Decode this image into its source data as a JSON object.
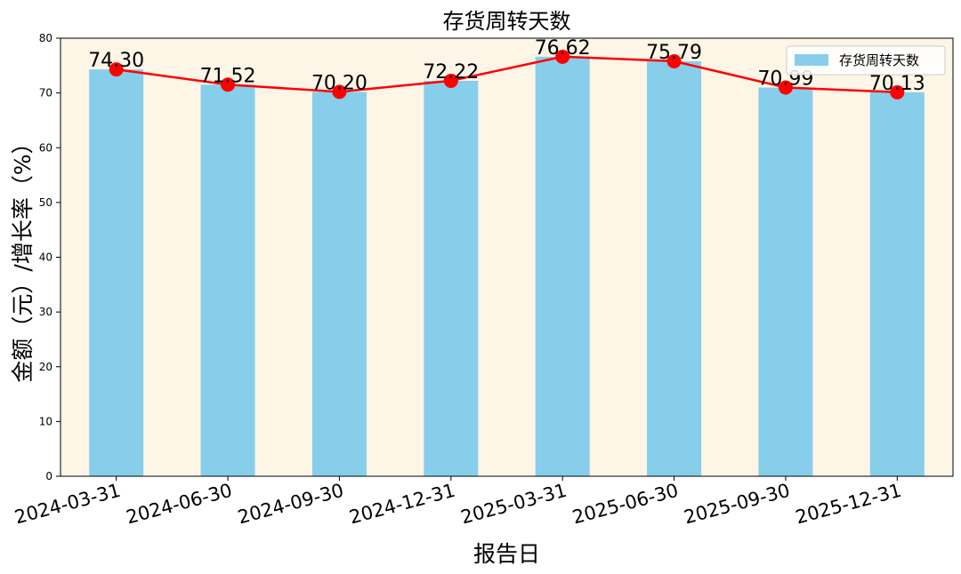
{
  "chart_data": {
    "type": "bar",
    "title": "存货周转天数",
    "xlabel": "报告日",
    "ylabel": "金额（元）/增长率（%）",
    "categories": [
      "2024-03-31",
      "2024-06-30",
      "2024-09-30",
      "2024-12-31",
      "2025-03-31",
      "2025-06-30",
      "2025-09-30",
      "2025-12-31"
    ],
    "series": [
      {
        "name": "存货周转天数",
        "kind": "bar",
        "color": "#87CEEB",
        "values": [
          74.3,
          71.52,
          70.2,
          72.22,
          76.62,
          75.79,
          70.99,
          70.13
        ]
      },
      {
        "kind": "line",
        "color": "#FF0000",
        "values": [
          74.3,
          71.52,
          70.2,
          72.22,
          76.62,
          75.79,
          70.99,
          70.13
        ]
      }
    ],
    "data_labels": [
      "74.30",
      "71.52",
      "70.20",
      "72.22",
      "76.62",
      "75.79",
      "70.99",
      "70.13"
    ],
    "ylim": [
      0,
      80
    ],
    "yticks": [
      "0",
      "10",
      "20",
      "30",
      "40",
      "50",
      "60",
      "70",
      "80"
    ],
    "grid": false,
    "legend_position": "top-right",
    "plot_background": "#FDF5E6"
  }
}
